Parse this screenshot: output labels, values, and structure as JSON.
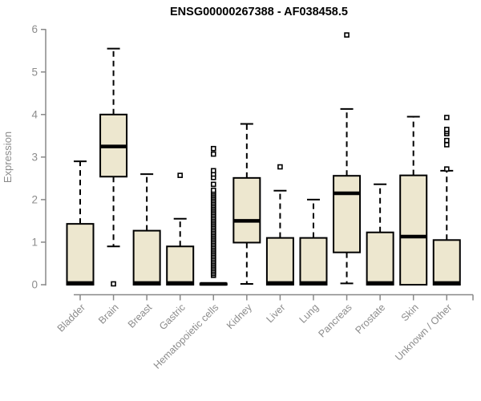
{
  "title": "ENSG00000267388 - AF038458.5",
  "ylabel": "Expression",
  "colors": {
    "box_fill": "#ede7cf",
    "box_border": "#000000",
    "median": "#000000",
    "whisker": "#000000",
    "outlier_fill": "#ffffff",
    "outlier_border": "#000000",
    "axis": "#888888",
    "tick_label": "#8c8c8c",
    "title_color": "#000000",
    "background": "#ffffff"
  },
  "chart_data": {
    "type": "boxplot",
    "title": "ENSG00000267388 - AF038458.5",
    "xlabel": "",
    "ylabel": "Expression",
    "ylim": [
      0,
      6
    ],
    "yticks": [
      0,
      1,
      2,
      3,
      4,
      5,
      6
    ],
    "grid": false,
    "legend": "none",
    "categories": [
      "Bladder",
      "Brain",
      "Breast",
      "Gastric",
      "Hematopoietic cells",
      "Kidney",
      "Liver",
      "Lung",
      "Pancreas",
      "Prostate",
      "Skin",
      "Unknown / Other"
    ],
    "series": [
      {
        "name": "Bladder",
        "whisker_low": 0,
        "q1": 0,
        "median": 0.04,
        "q3": 1.43,
        "whisker_high": 2.9,
        "outliers": []
      },
      {
        "name": "Brain",
        "whisker_low": 0.9,
        "q1": 2.54,
        "median": 3.25,
        "q3": 4.0,
        "whisker_high": 5.55,
        "outliers": [
          0.02
        ]
      },
      {
        "name": "Breast",
        "whisker_low": 0,
        "q1": 0,
        "median": 0.04,
        "q3": 1.27,
        "whisker_high": 2.6,
        "outliers": []
      },
      {
        "name": "Gastric",
        "whisker_low": 0,
        "q1": 0,
        "median": 0.04,
        "q3": 0.9,
        "whisker_high": 1.55,
        "outliers": [
          2.57
        ]
      },
      {
        "name": "Hematopoietic cells",
        "whisker_low": 0,
        "q1": 0,
        "median": 0.02,
        "q3": 0.03,
        "whisker_high": 0.03,
        "outliers": [
          0.22,
          0.26,
          0.3,
          0.34,
          0.38,
          0.42,
          0.46,
          0.5,
          0.54,
          0.58,
          0.62,
          0.66,
          0.7,
          0.74,
          0.78,
          0.82,
          0.86,
          0.9,
          0.94,
          0.98,
          1.02,
          1.06,
          1.1,
          1.14,
          1.18,
          1.22,
          1.26,
          1.3,
          1.34,
          1.38,
          1.42,
          1.46,
          1.5,
          1.54,
          1.58,
          1.62,
          1.66,
          1.7,
          1.74,
          1.78,
          1.82,
          1.86,
          1.9,
          1.94,
          1.98,
          2.02,
          2.06,
          2.1,
          2.14,
          2.18,
          2.22,
          2.36,
          2.52,
          2.6,
          2.68,
          3.07,
          3.2
        ]
      },
      {
        "name": "Kidney",
        "whisker_low": 0.02,
        "q1": 0.99,
        "median": 1.5,
        "q3": 2.51,
        "whisker_high": 3.78,
        "outliers": []
      },
      {
        "name": "Liver",
        "whisker_low": 0,
        "q1": 0,
        "median": 0.04,
        "q3": 1.1,
        "whisker_high": 2.21,
        "outliers": [
          2.77
        ]
      },
      {
        "name": "Lung",
        "whisker_low": 0,
        "q1": 0,
        "median": 0.04,
        "q3": 1.1,
        "whisker_high": 2.0,
        "outliers": []
      },
      {
        "name": "Pancreas",
        "whisker_low": 0.03,
        "q1": 0.76,
        "median": 2.15,
        "q3": 2.56,
        "whisker_high": 4.13,
        "outliers": [
          5.87
        ]
      },
      {
        "name": "Prostate",
        "whisker_low": 0,
        "q1": 0,
        "median": 0.04,
        "q3": 1.23,
        "whisker_high": 2.36,
        "outliers": []
      },
      {
        "name": "Skin",
        "whisker_low": 0,
        "q1": 0,
        "median": 1.13,
        "q3": 2.57,
        "whisker_high": 3.95,
        "outliers": []
      },
      {
        "name": "Unknown / Other",
        "whisker_low": 0,
        "q1": 0,
        "median": 0.04,
        "q3": 1.05,
        "whisker_high": 2.68,
        "outliers": [
          2.72,
          3.29,
          3.39,
          3.55,
          3.6,
          3.65,
          3.93
        ]
      }
    ]
  }
}
